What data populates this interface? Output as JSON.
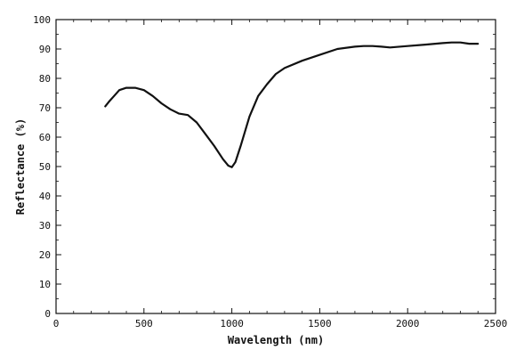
{
  "chart_data": {
    "type": "line",
    "title": "",
    "xlabel": "Wavelength (nm)",
    "ylabel": "Reflectance (%)",
    "xlim": [
      0,
      2500
    ],
    "ylim": [
      0,
      100
    ],
    "xticks": [
      0,
      500,
      1000,
      1500,
      2000,
      2500
    ],
    "yticks": [
      0,
      10,
      20,
      30,
      40,
      50,
      60,
      70,
      80,
      90,
      100
    ],
    "grid": false,
    "legend": "none",
    "line_color": "#111111",
    "series": [
      {
        "x": [
          280,
          300,
          330,
          360,
          400,
          450,
          500,
          550,
          600,
          650,
          700,
          750,
          800,
          850,
          900,
          950,
          980,
          1000,
          1020,
          1050,
          1100,
          1150,
          1200,
          1250,
          1300,
          1400,
          1500,
          1600,
          1700,
          1750,
          1800,
          1850,
          1900,
          2000,
          2100,
          2200,
          2250,
          2300,
          2350,
          2400
        ],
        "y": [
          70.5,
          72,
          74,
          76,
          76.8,
          76.8,
          76,
          74,
          71.5,
          69.5,
          68,
          67.5,
          65,
          61,
          57,
          52.5,
          50.3,
          49.8,
          51.5,
          57,
          67,
          74,
          78,
          81.5,
          83.5,
          86,
          88,
          90,
          90.8,
          91,
          91,
          90.8,
          90.5,
          91,
          91.5,
          92,
          92.2,
          92.2,
          91.8,
          91.8
        ]
      }
    ]
  }
}
